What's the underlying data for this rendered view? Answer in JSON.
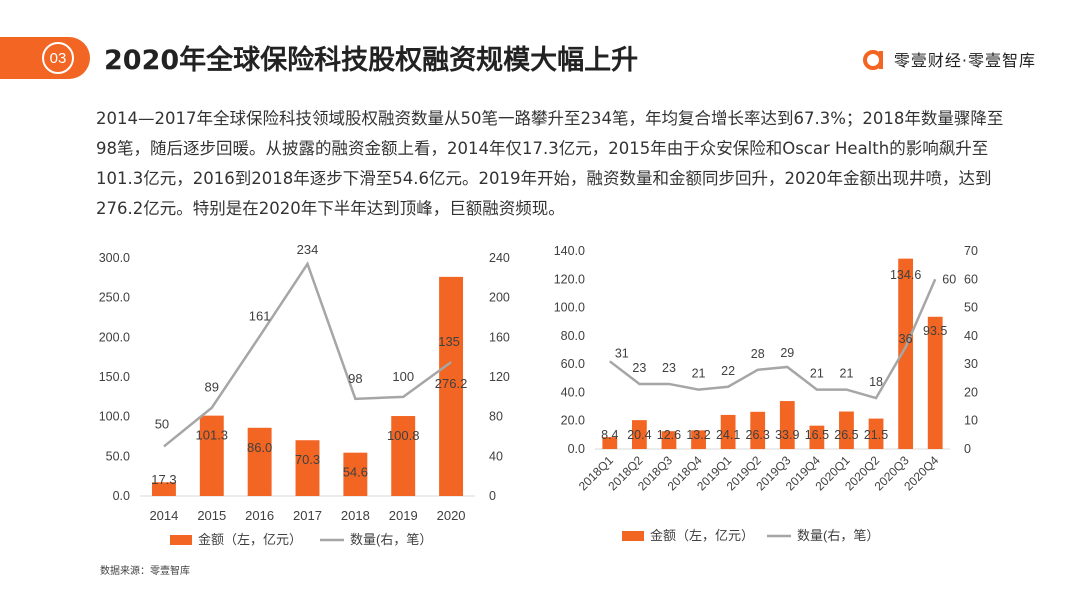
{
  "header": {
    "number": "03",
    "title": "2020年全球保险科技股权融资规模大幅上升",
    "logo_text": "零壹财经·零壹智库"
  },
  "description": "2014—2017年全球保险科技领域股权融资数量从50笔一路攀升至234笔，年均复合增长率达到67.3%；2018年数量骤降至98笔，随后逐步回暖。从披露的融资金额上看，2014年仅17.3亿元，2015年由于众安保险和Oscar Health的影响飙升至101.3亿元，2016到2018年逐步下滑至54.6亿元。2019年开始，融资数量和金额同步回升，2020年金额出现井喷，达到276.2亿元。特别是在2020年下半年达到顶峰，巨额融资频现。",
  "source": "数据来源：零壹智库",
  "colors": {
    "accent": "#f26522",
    "bar": "#f26522",
    "line": "#a6a6a6"
  },
  "chart_data": [
    {
      "type": "bar+line",
      "categories": [
        "2014",
        "2015",
        "2016",
        "2017",
        "2018",
        "2019",
        "2020"
      ],
      "series": [
        {
          "name": "金额（左，亿元）",
          "type": "bar",
          "axis": "left",
          "values": [
            17.3,
            101.3,
            86.0,
            70.3,
            54.6,
            100.8,
            276.2
          ],
          "labels": [
            "17.3",
            "101.3",
            "86.0",
            "70.3",
            "54.6",
            "100.8",
            "276.2"
          ]
        },
        {
          "name": "数量(右，笔）",
          "type": "line",
          "axis": "right",
          "values": [
            50,
            89,
            161,
            234,
            98,
            100,
            135
          ],
          "labels": [
            "50",
            "89",
            "161",
            "234",
            "98",
            "100",
            "135"
          ]
        }
      ],
      "ylim_left": [
        0,
        300
      ],
      "yticks_left": [
        "0.0",
        "50.0",
        "100.0",
        "150.0",
        "200.0",
        "250.0",
        "300.0"
      ],
      "ylim_right": [
        0,
        240
      ],
      "yticks_right": [
        "0",
        "40",
        "80",
        "120",
        "160",
        "200",
        "240"
      ],
      "legend": {
        "bar": "金额（左，亿元）",
        "line": "数量(右，笔）"
      }
    },
    {
      "type": "bar+line",
      "categories": [
        "2018Q1",
        "2018Q2",
        "2018Q3",
        "2018Q4",
        "2019Q1",
        "2019Q2",
        "2019Q3",
        "2019Q4",
        "2020Q1",
        "2020Q2",
        "2020Q3",
        "2020Q4"
      ],
      "series": [
        {
          "name": "金额（左，亿元）",
          "type": "bar",
          "axis": "left",
          "values": [
            8.4,
            20.4,
            12.6,
            13.2,
            24.1,
            26.3,
            33.9,
            16.5,
            26.5,
            21.5,
            134.6,
            93.5
          ],
          "labels": [
            "8.4",
            "20.4",
            "12.6",
            "13.2",
            "24.1",
            "26.3",
            "33.9",
            "16.5",
            "26.5",
            "21.5",
            "134.6",
            "93.5"
          ]
        },
        {
          "name": "数量(右，笔）",
          "type": "line",
          "axis": "right",
          "values": [
            31,
            23,
            23,
            21,
            22,
            28,
            29,
            21,
            21,
            18,
            36,
            60
          ],
          "labels": [
            "31",
            "23",
            "23",
            "21",
            "22",
            "28",
            "29",
            "21",
            "21",
            "18",
            "36",
            "60"
          ]
        }
      ],
      "ylim_left": [
        0,
        140
      ],
      "yticks_left": [
        "0.0",
        "20.0",
        "40.0",
        "60.0",
        "80.0",
        "100.0",
        "120.0",
        "140.0"
      ],
      "ylim_right": [
        0,
        70
      ],
      "yticks_right": [
        "0",
        "10",
        "20",
        "30",
        "40",
        "50",
        "60",
        "70"
      ],
      "legend": {
        "bar": "金额（左，亿元）",
        "line": "数量(右，笔）"
      }
    }
  ]
}
